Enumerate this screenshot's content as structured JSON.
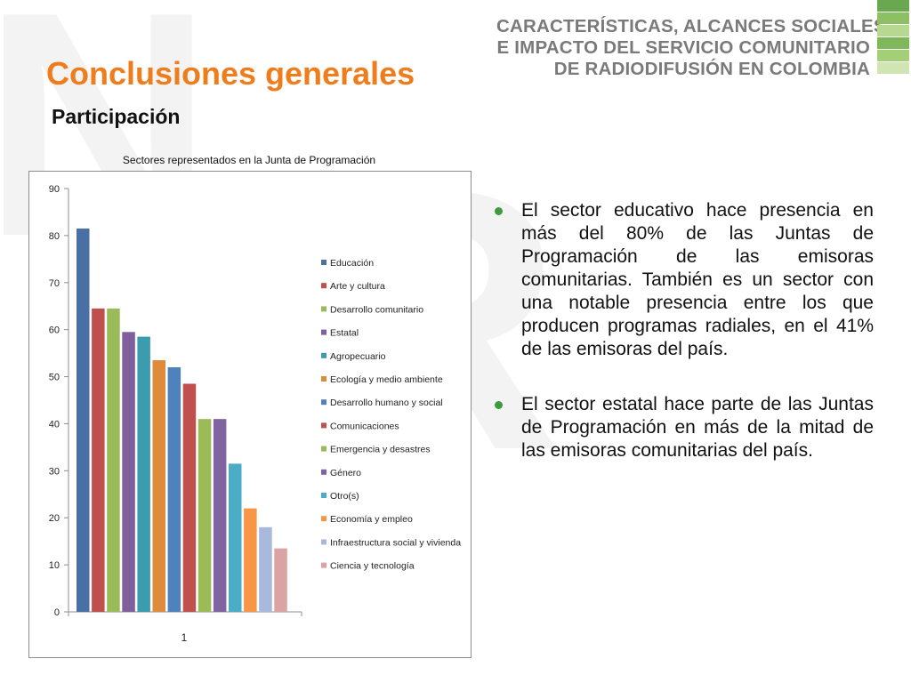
{
  "header": {
    "lines": [
      "CARACTERÍSTICAS, ALCANCES SOCIALES",
      "E IMPACTO DEL SERVICIO COMUNITARIO",
      "DE RADIODIFUSIÓN EN COLOMBIA"
    ],
    "logo_colors": [
      "#6aa84f",
      "#8cc063",
      "#b6d98f",
      "#7fb85a",
      "#a3cf77",
      "#cfe6b4"
    ]
  },
  "slide": {
    "title": "Conclusiones generales",
    "subtitle": "Participación"
  },
  "chart_data": {
    "type": "bar",
    "title": "Sectores representados en la Junta de Programación",
    "categories": [
      "1"
    ],
    "ylim": [
      0,
      90
    ],
    "yticks": [
      0,
      10,
      20,
      30,
      40,
      50,
      60,
      70,
      80,
      90
    ],
    "legend_position": "right",
    "grid": false,
    "series": [
      {
        "name": "Educación",
        "value": 81.5,
        "color": "#4a6fa5"
      },
      {
        "name": "Arte y cultura",
        "value": 64.5,
        "color": "#c0504d"
      },
      {
        "name": "Desarrollo comunitario",
        "value": 64.5,
        "color": "#9bbb59"
      },
      {
        "name": "Estatal",
        "value": 59.5,
        "color": "#7f5f9e"
      },
      {
        "name": "Agropecuario",
        "value": 58.5,
        "color": "#3b9cb0"
      },
      {
        "name": "Ecología y medio ambiente",
        "value": 53.5,
        "color": "#e08a3c"
      },
      {
        "name": "Desarrollo humano y social",
        "value": 52.0,
        "color": "#4f81bd"
      },
      {
        "name": "Comunicaciones",
        "value": 48.5,
        "color": "#c0504d"
      },
      {
        "name": "Emergencia y desastres",
        "value": 41.0,
        "color": "#9bbb59"
      },
      {
        "name": "Género",
        "value": 41.0,
        "color": "#8064a2"
      },
      {
        "name": "Otro(s)",
        "value": 31.5,
        "color": "#4bacc6"
      },
      {
        "name": "Economía y empleo",
        "value": 22.0,
        "color": "#f79646"
      },
      {
        "name": "Infraestructura social y vivienda",
        "value": 18.0,
        "color": "#a9b9dc"
      },
      {
        "name": "Ciencia y tecnología",
        "value": 13.5,
        "color": "#dba3a3"
      }
    ]
  },
  "bullets": [
    "El sector educativo hace presencia en más del 80% de las Juntas de Programación de las emisoras comunitarias. También es un sector con una notable presencia entre los que producen programas radiales, en el 41% de las emisoras del país.",
    "El sector estatal hace parte de las Juntas de Programación en más de la mitad de las emisoras comunitarias del país."
  ],
  "bullet_color": "#3f9a3f"
}
